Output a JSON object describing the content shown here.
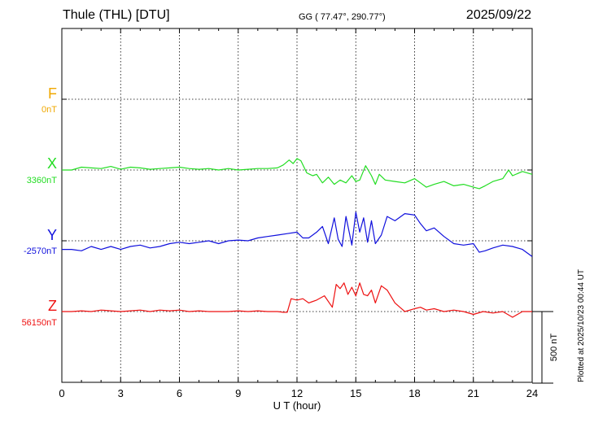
{
  "header": {
    "station": "Thule (THL)  [DTU]",
    "coords": "GG ( 77.47°, 290.77°)",
    "date": "2025/09/22",
    "plotted": "Plotted at 2025/10/23 00:44 UT"
  },
  "components": [
    {
      "name": "F",
      "baseline": "0nT",
      "color": "#f0a800"
    },
    {
      "name": "X",
      "baseline": "3360nT",
      "color": "#22dd22"
    },
    {
      "name": "Y",
      "baseline": "-2570nT",
      "color": "#1010dd"
    },
    {
      "name": "Z",
      "baseline": "56150nT",
      "color": "#ee1111"
    }
  ],
  "scale_bar_label": "500 nT",
  "chart_data": {
    "type": "line",
    "title": "Thule (THL)  [DTU]",
    "xlabel": "U T (hour)",
    "xlim": [
      0,
      24
    ],
    "xticks": [
      "0",
      "3",
      "6",
      "9",
      "12",
      "15",
      "18",
      "21",
      "24"
    ],
    "scale_bar_nT": 500,
    "grid": true,
    "series": [
      {
        "name": "X",
        "baseline_nT": 3360,
        "x": [
          0,
          0.5,
          1,
          1.5,
          2,
          2.5,
          3,
          3.5,
          4,
          4.5,
          5,
          5.5,
          6,
          6.5,
          7,
          7.5,
          8,
          8.5,
          9,
          9.5,
          10,
          10.5,
          11,
          11.3,
          11.6,
          11.8,
          12,
          12.2,
          12.5,
          12.8,
          13,
          13.3,
          13.6,
          13.9,
          14.2,
          14.5,
          14.8,
          15,
          15.2,
          15.5,
          15.8,
          16,
          16.2,
          16.5,
          17,
          17.5,
          18,
          18.3,
          18.6,
          19,
          19.5,
          20,
          20.5,
          21,
          21.3,
          21.6,
          22,
          22.5,
          22.8,
          23,
          23.5,
          24
        ],
        "values": [
          0,
          0,
          20,
          15,
          10,
          25,
          5,
          20,
          15,
          5,
          10,
          15,
          20,
          10,
          5,
          10,
          0,
          10,
          0,
          5,
          10,
          10,
          15,
          35,
          70,
          45,
          80,
          65,
          -20,
          -40,
          -30,
          -90,
          -50,
          -100,
          -70,
          -90,
          -40,
          -80,
          -70,
          30,
          -40,
          -100,
          -30,
          -70,
          -80,
          -90,
          -60,
          -90,
          -120,
          -100,
          -80,
          -110,
          -100,
          -120,
          -130,
          -110,
          -80,
          -60,
          0,
          -40,
          -10,
          -30
        ]
      },
      {
        "name": "Y",
        "baseline_nT": -2570,
        "x": [
          0,
          0.5,
          1,
          1.5,
          2,
          2.5,
          3,
          3.5,
          4,
          4.5,
          5,
          5.5,
          6,
          6.5,
          7,
          7.5,
          8,
          8.5,
          9,
          9.5,
          10,
          10.5,
          11,
          11.5,
          12,
          12.3,
          12.6,
          13,
          13.3,
          13.6,
          13.9,
          14.1,
          14.3,
          14.5,
          14.8,
          15,
          15.2,
          15.4,
          15.6,
          15.8,
          16,
          16.3,
          16.6,
          17,
          17.5,
          18,
          18.3,
          18.6,
          19,
          19.5,
          20,
          20.5,
          21,
          21.3,
          21.6,
          22,
          22.5,
          23,
          23.5,
          24
        ],
        "values": [
          -60,
          -60,
          -70,
          -40,
          -60,
          -40,
          -60,
          -40,
          -30,
          -50,
          -40,
          -20,
          -10,
          -20,
          -10,
          0,
          -20,
          0,
          5,
          0,
          20,
          30,
          40,
          50,
          60,
          20,
          20,
          60,
          100,
          -20,
          160,
          10,
          -40,
          170,
          -30,
          200,
          60,
          160,
          -10,
          140,
          -20,
          40,
          170,
          140,
          190,
          180,
          120,
          70,
          90,
          30,
          -20,
          -30,
          -20,
          -80,
          -70,
          -50,
          -30,
          -40,
          -60,
          -110
        ]
      },
      {
        "name": "Z",
        "baseline_nT": 56150,
        "x": [
          0,
          0.5,
          1,
          1.5,
          2,
          2.5,
          3,
          3.5,
          4,
          4.5,
          5,
          5.5,
          6,
          6.5,
          7,
          7.5,
          8,
          8.5,
          9,
          9.5,
          10,
          10.5,
          11,
          11.3,
          11.5,
          11.7,
          12,
          12.3,
          12.6,
          13,
          13.4,
          13.8,
          14,
          14.2,
          14.4,
          14.6,
          14.8,
          15,
          15.2,
          15.4,
          15.6,
          15.8,
          16,
          16.3,
          16.6,
          17,
          17.5,
          18,
          18.3,
          18.6,
          19,
          19.5,
          20,
          20.5,
          21,
          21.5,
          22,
          22.5,
          23,
          23.5,
          24
        ],
        "values": [
          0,
          0,
          5,
          0,
          10,
          5,
          0,
          5,
          10,
          0,
          10,
          5,
          10,
          0,
          5,
          0,
          0,
          0,
          5,
          0,
          5,
          0,
          0,
          -5,
          -5,
          90,
          80,
          90,
          60,
          80,
          110,
          30,
          190,
          160,
          200,
          120,
          170,
          110,
          200,
          120,
          110,
          150,
          60,
          180,
          150,
          60,
          0,
          20,
          30,
          10,
          20,
          0,
          10,
          0,
          -20,
          0,
          -10,
          0,
          -40,
          0,
          0
        ]
      }
    ]
  }
}
